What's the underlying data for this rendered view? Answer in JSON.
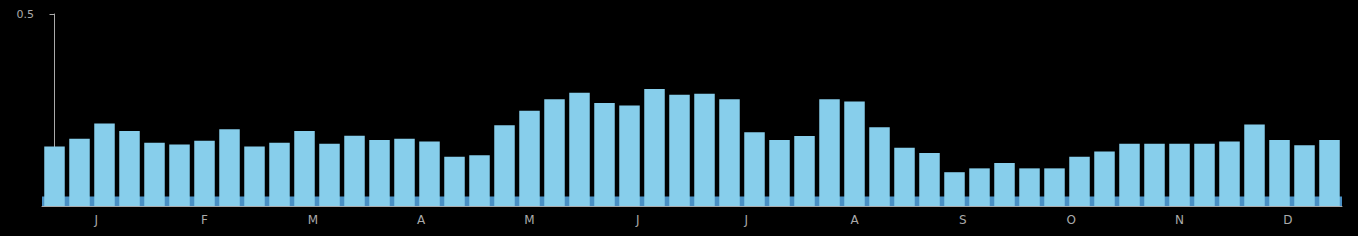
{
  "chart_data": {
    "type": "bar",
    "categories": [
      null,
      null,
      null,
      null,
      null,
      null,
      null,
      null,
      null,
      null,
      null,
      null,
      null,
      null,
      null,
      null,
      null,
      null,
      null,
      null,
      null,
      null,
      null,
      null,
      null,
      null,
      null,
      null,
      null,
      null,
      null,
      null,
      null,
      null,
      null,
      null,
      null,
      null,
      null,
      null,
      null,
      null,
      null,
      null,
      null,
      null,
      null,
      null,
      null,
      null,
      null,
      null
    ],
    "values": [
      0.155,
      0.175,
      0.215,
      0.195,
      0.165,
      0.16,
      0.17,
      0.2,
      0.155,
      0.165,
      0.195,
      0.162,
      0.183,
      0.172,
      0.175,
      0.168,
      0.128,
      0.132,
      0.21,
      0.248,
      0.278,
      0.295,
      0.268,
      0.262,
      0.305,
      0.29,
      0.292,
      0.278,
      0.192,
      0.172,
      0.182,
      0.278,
      0.272,
      0.205,
      0.152,
      0.138,
      0.088,
      0.098,
      0.112,
      0.098,
      0.098,
      0.128,
      0.142,
      0.162,
      0.162,
      0.162,
      0.162,
      0.168,
      0.212,
      0.172,
      0.158,
      0.172
    ],
    "color": "#87CEEB",
    "xlim": [
      -0.5,
      51.5
    ],
    "xticks": [
      {
        "value": 1.6666666666666667,
        "label": "J"
      },
      {
        "value": 6.0,
        "label": "F"
      },
      {
        "value": 10.333333333333334,
        "label": "M"
      },
      {
        "value": 14.666666666666668,
        "label": "A"
      },
      {
        "value": 19.0,
        "label": "M"
      },
      {
        "value": 23.333333333333336,
        "label": "J"
      },
      {
        "value": 27.666666666666668,
        "label": "J"
      },
      {
        "value": 32.0,
        "label": "A"
      },
      {
        "value": 36.333333333333336,
        "label": "S"
      },
      {
        "value": 40.666666666666664,
        "label": "O"
      },
      {
        "value": 45.0,
        "label": "N"
      },
      {
        "value": 49.333333333333336,
        "label": "D"
      }
    ],
    "ylim": [
      0,
      0.5
    ],
    "yticks": [
      0.5
    ],
    "baseline": {
      "ylim": [
        0,
        0.025
      ],
      "color": "#4a90c4"
    },
    "grid": false
  }
}
